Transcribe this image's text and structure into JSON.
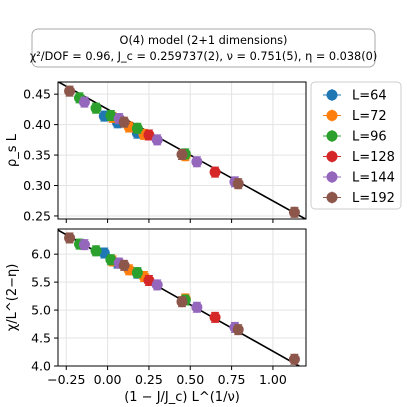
{
  "chart_data": {
    "type": "scatter",
    "title": "O(4) model (2+1 dimensions)",
    "subtitle": "χ²/DOF = 0.96, J_c = 0.259737(2), ν = 0.751(5), η = 0.038(0)",
    "xlabel": "(1 − J/J_c) L^(1/ν)",
    "xlim": [
      -0.3,
      1.2
    ],
    "xticks": [
      -0.25,
      0.0,
      0.25,
      0.5,
      0.75,
      1.0
    ],
    "xtick_labels": [
      "−0.25",
      "0.00",
      "0.25",
      "0.50",
      "0.75",
      "1.00"
    ],
    "grid": true,
    "legend_position": "outside-right",
    "series": [
      {
        "name": "L=64",
        "color": "#1f77b4"
      },
      {
        "name": "L=72",
        "color": "#ff7f0e"
      },
      {
        "name": "L=96",
        "color": "#2ca02c"
      },
      {
        "name": "L=128",
        "color": "#d62728"
      },
      {
        "name": "L=144",
        "color": "#9467bd"
      },
      {
        "name": "L=192",
        "color": "#8c564b"
      }
    ],
    "panels": [
      {
        "ylabel": "ρ_s L",
        "ylim": [
          0.245,
          0.47
        ],
        "yticks": [
          0.25,
          0.3,
          0.35,
          0.4,
          0.45
        ],
        "ytick_labels": [
          "0.25",
          "0.30",
          "0.35",
          "0.40",
          "0.45"
        ],
        "fit_line": [
          [
            -0.3,
            0.4705
          ],
          [
            1.2,
            0.2445
          ]
        ],
        "points": [
          {
            "s": 0,
            "x": -0.02,
            "y": 0.414
          },
          {
            "s": 0,
            "x": 0.06,
            "y": 0.403
          },
          {
            "s": 0,
            "x": 0.18,
            "y": 0.386
          },
          {
            "s": 1,
            "x": 0.03,
            "y": 0.412
          },
          {
            "s": 1,
            "x": 0.13,
            "y": 0.396
          },
          {
            "s": 1,
            "x": 0.22,
            "y": 0.384
          },
          {
            "s": 1,
            "x": 0.47,
            "y": 0.349
          },
          {
            "s": 2,
            "x": -0.17,
            "y": 0.444
          },
          {
            "s": 2,
            "x": -0.07,
            "y": 0.427
          },
          {
            "s": 2,
            "x": 0.02,
            "y": 0.415
          },
          {
            "s": 2,
            "x": 0.18,
            "y": 0.394
          },
          {
            "s": 2,
            "x": 0.47,
            "y": 0.352
          },
          {
            "s": 3,
            "x": 0.25,
            "y": 0.383
          },
          {
            "s": 3,
            "x": 0.65,
            "y": 0.322
          },
          {
            "s": 4,
            "x": -0.14,
            "y": 0.437
          },
          {
            "s": 4,
            "x": 0.07,
            "y": 0.41
          },
          {
            "s": 4,
            "x": 0.3,
            "y": 0.375
          },
          {
            "s": 4,
            "x": 0.54,
            "y": 0.339
          },
          {
            "s": 4,
            "x": 0.77,
            "y": 0.306
          },
          {
            "s": 5,
            "x": -0.23,
            "y": 0.455
          },
          {
            "s": 5,
            "x": 0.1,
            "y": 0.404
          },
          {
            "s": 5,
            "x": 0.45,
            "y": 0.351
          },
          {
            "s": 5,
            "x": 0.79,
            "y": 0.303
          },
          {
            "s": 5,
            "x": 1.13,
            "y": 0.256
          }
        ]
      },
      {
        "ylabel": "χ/L^(2−η)",
        "ylim": [
          4.0,
          6.45
        ],
        "yticks": [
          4.0,
          4.5,
          5.0,
          5.5,
          6.0
        ],
        "ytick_labels": [
          "4.0",
          "4.5",
          "5.0",
          "5.5",
          "6.0"
        ],
        "fit_line": [
          [
            -0.3,
            6.43
          ],
          [
            1.2,
            3.93
          ]
        ],
        "points": [
          {
            "s": 0,
            "x": -0.02,
            "y": 6.02
          },
          {
            "s": 0,
            "x": 0.06,
            "y": 5.84
          },
          {
            "s": 0,
            "x": 0.18,
            "y": 5.66
          },
          {
            "s": 1,
            "x": 0.03,
            "y": 5.88
          },
          {
            "s": 1,
            "x": 0.13,
            "y": 5.72
          },
          {
            "s": 1,
            "x": 0.22,
            "y": 5.6
          },
          {
            "s": 1,
            "x": 0.47,
            "y": 5.2
          },
          {
            "s": 2,
            "x": -0.17,
            "y": 6.18
          },
          {
            "s": 2,
            "x": -0.07,
            "y": 6.06
          },
          {
            "s": 2,
            "x": 0.02,
            "y": 5.9
          },
          {
            "s": 2,
            "x": 0.18,
            "y": 5.67
          },
          {
            "s": 2,
            "x": 0.47,
            "y": 5.18
          },
          {
            "s": 3,
            "x": 0.25,
            "y": 5.53
          },
          {
            "s": 3,
            "x": 0.65,
            "y": 4.87
          },
          {
            "s": 4,
            "x": -0.14,
            "y": 6.17
          },
          {
            "s": 4,
            "x": 0.07,
            "y": 5.84
          },
          {
            "s": 4,
            "x": 0.3,
            "y": 5.45
          },
          {
            "s": 4,
            "x": 0.54,
            "y": 5.05
          },
          {
            "s": 4,
            "x": 0.77,
            "y": 4.69
          },
          {
            "s": 5,
            "x": -0.23,
            "y": 6.29
          },
          {
            "s": 5,
            "x": 0.1,
            "y": 5.8
          },
          {
            "s": 5,
            "x": 0.45,
            "y": 5.15
          },
          {
            "s": 5,
            "x": 0.79,
            "y": 4.65
          },
          {
            "s": 5,
            "x": 1.13,
            "y": 4.12
          }
        ]
      }
    ]
  }
}
